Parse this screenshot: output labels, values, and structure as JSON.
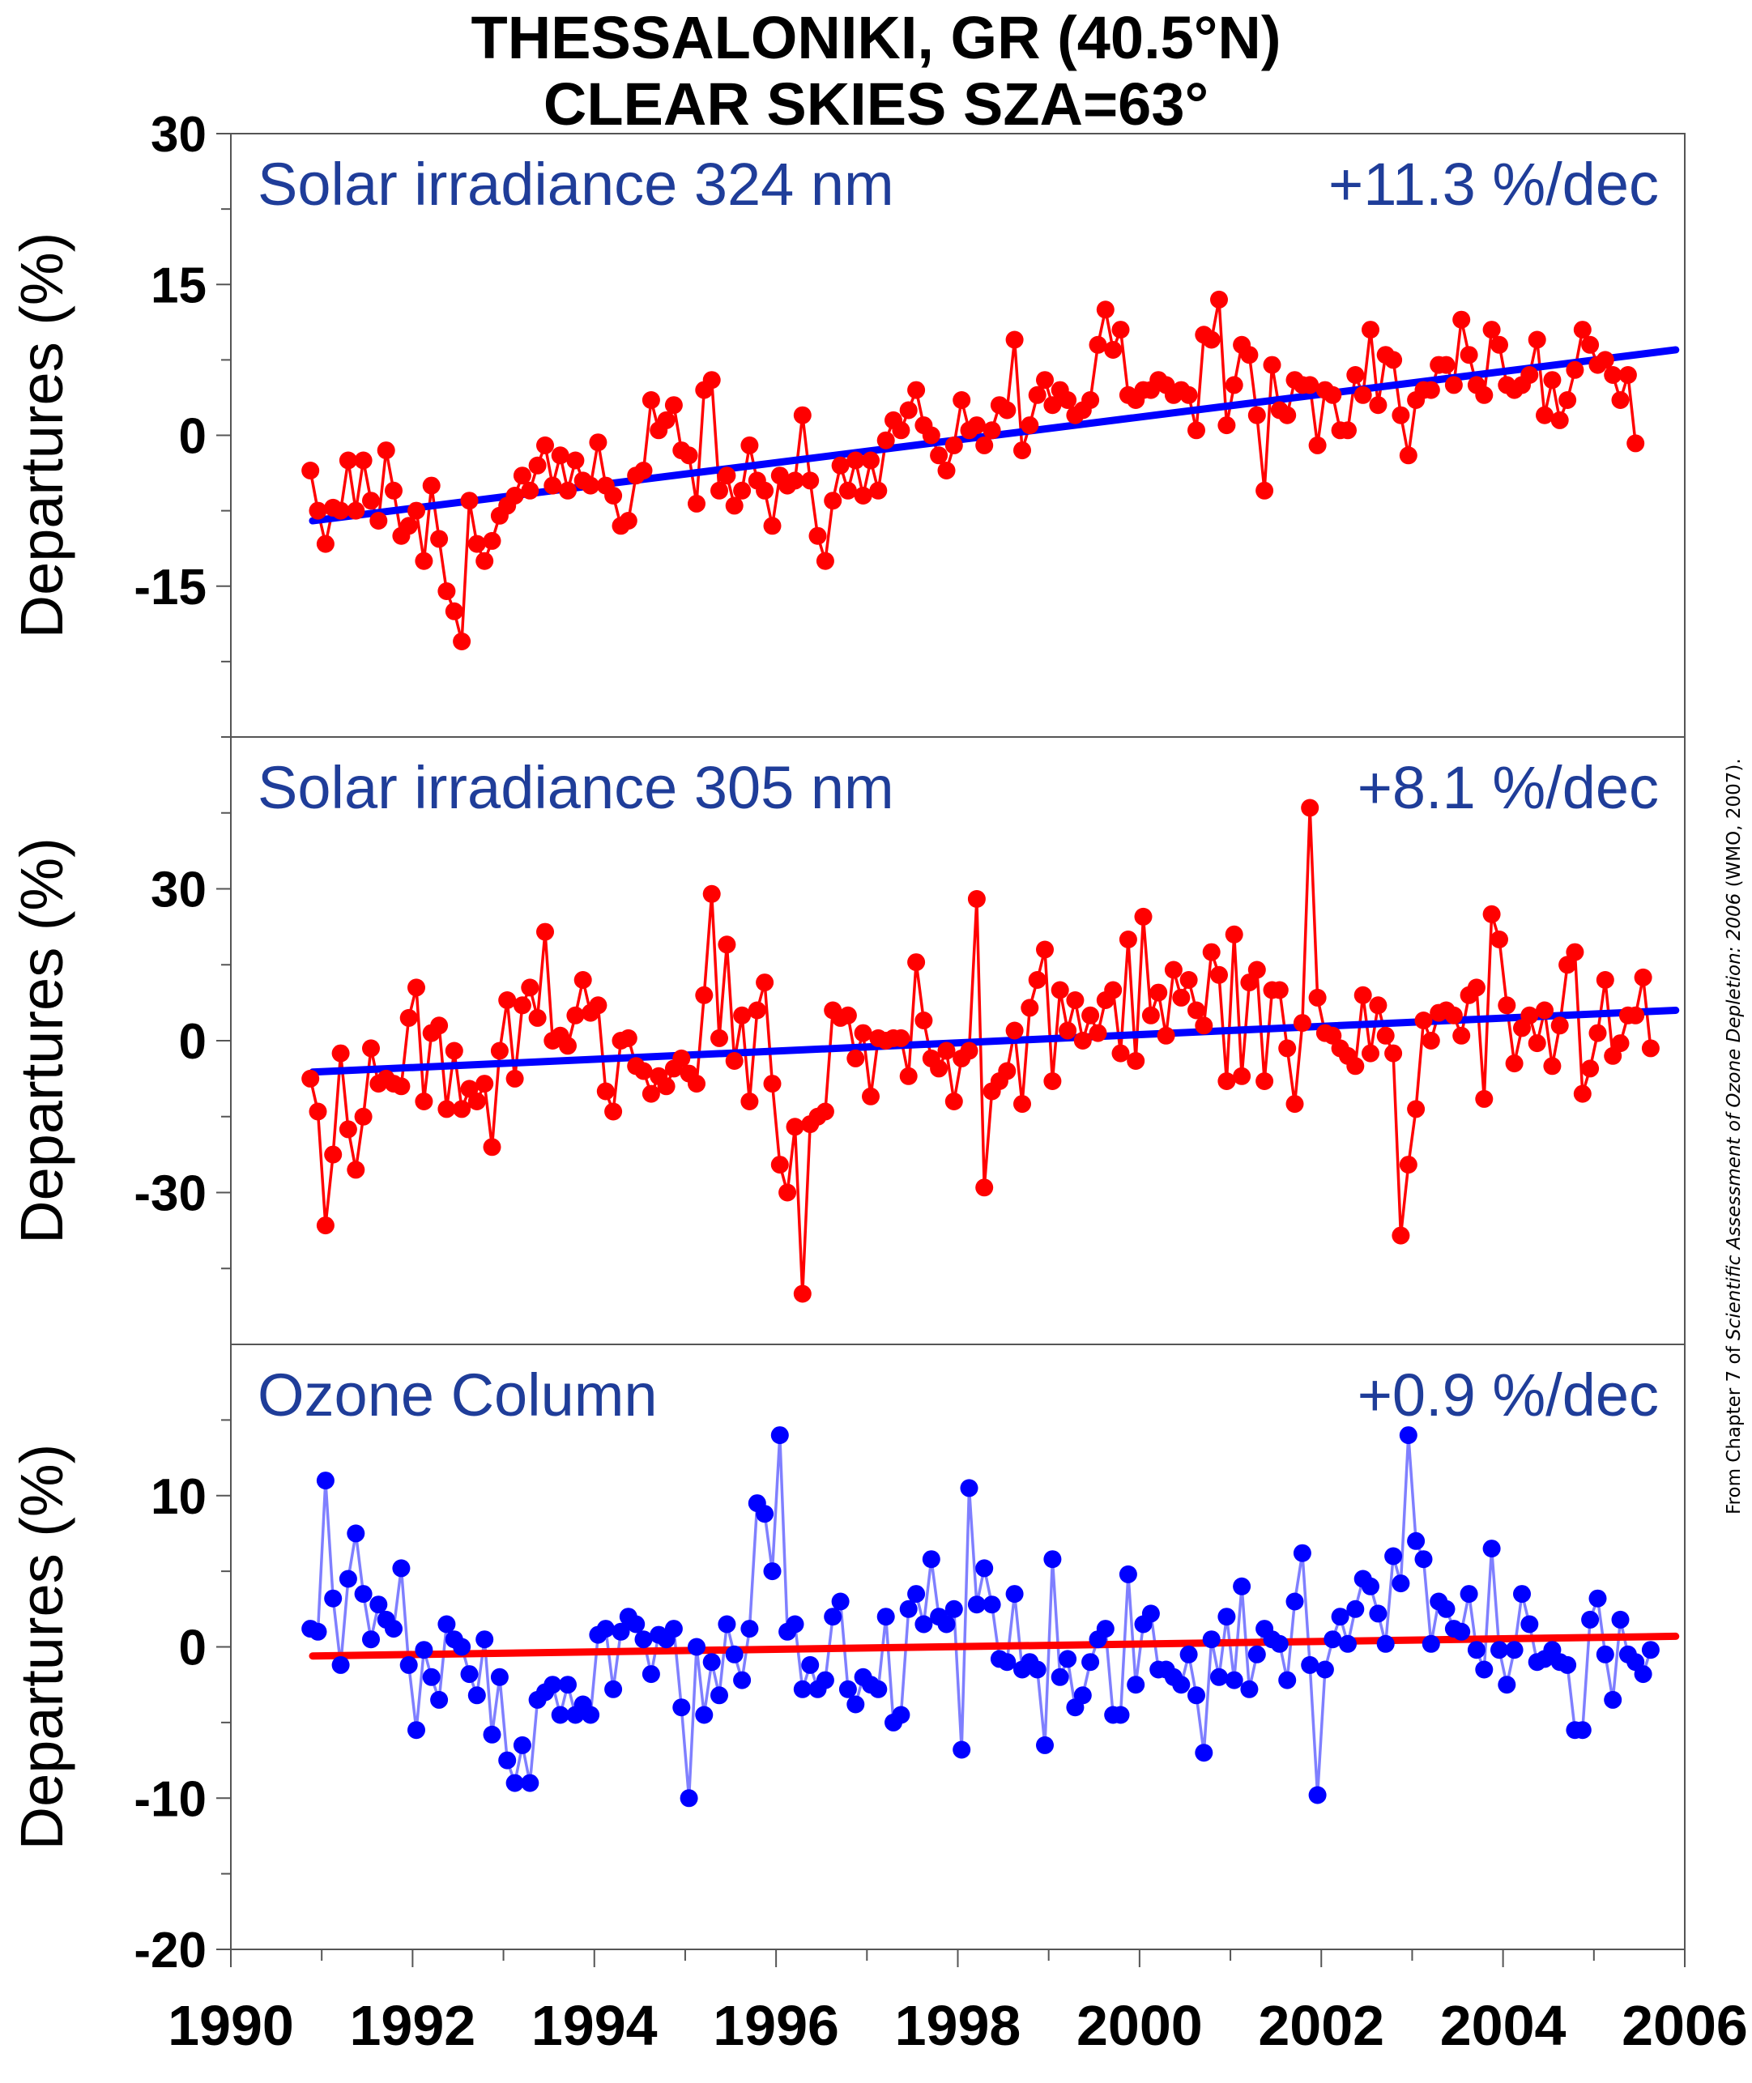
{
  "title_line1": "THESSALONIKI, GR (40.5°N)",
  "title_line2": "CLEAR SKIES  SZA=63°",
  "credit": {
    "prefix": "From Chapter 7 of ",
    "italic": "Scientific Assessment of Ozone Depletion: 2006",
    "suffix": " (WMO, 2007)."
  },
  "colors": {
    "irradiance_points": "#ff0000",
    "irradiance_trend": "#0000ff",
    "ozone_points": "#0000ff",
    "ozone_line": "#7f7fff",
    "ozone_trend": "#ff0000",
    "panel_label": "#1f3d99"
  },
  "chart_data": [
    {
      "type": "line",
      "label": "Solar irradiance 324 nm",
      "trend_label": "+11.3 %/dec",
      "ylabel": "Departures (%)",
      "xlim": [
        1990,
        2006
      ],
      "ylim": [
        -30,
        30
      ],
      "yticks_labeled": [
        -15,
        0,
        15,
        30
      ],
      "yticks_minor": [
        -30,
        -22.5,
        -7.5,
        7.5,
        22.5
      ],
      "series": [
        {
          "marker": "circle",
          "start_year": 1990.875,
          "values": [
            -3.5,
            -7.5,
            -10.8,
            -7.2,
            -7.5,
            -2.5,
            -7.5,
            -2.5,
            -6.5,
            -8.5,
            -1.5,
            -5.5,
            -10,
            -9,
            -7.5,
            -12.5,
            -5,
            -10.3,
            -15.5,
            -17.5,
            -20.5,
            -6.5,
            -10.8,
            -12.5,
            -10.5,
            -8,
            -7,
            -6,
            -4,
            -5.5,
            -3,
            -1,
            -5,
            -2,
            -5.5,
            -2.5,
            -4.5,
            -5,
            -0.7,
            -5,
            -6,
            -9,
            -8.5,
            -4,
            -3.5,
            3.5,
            0.5,
            1.5,
            3,
            -1.5,
            -2,
            -6.8,
            4.5,
            5.5,
            -5.5,
            -4,
            -7,
            -5.5,
            -1,
            -4.5,
            -5.5,
            -9,
            -4,
            -5,
            -4.5,
            2,
            -4.5,
            -10,
            -12.5,
            -6.5,
            -3,
            -5.5,
            -2.5,
            -6,
            -2.5,
            -5.5,
            -0.5,
            1.5,
            0.5,
            2.5,
            4.5,
            1,
            0,
            -2,
            -3.5,
            -1,
            3.5,
            0.5,
            1,
            -1,
            0.5,
            3,
            2.5,
            9.5,
            -1.5,
            1,
            4,
            5.5,
            3,
            4.5,
            3.5,
            2,
            2.5,
            3.5,
            9,
            12.5,
            8.5,
            10.5,
            4,
            3.5,
            4.5,
            4.5,
            5.5,
            5,
            4,
            4.5,
            4,
            0.5,
            10,
            9.5,
            13.5,
            1,
            5,
            9,
            8,
            2,
            -5.5,
            7,
            2.5,
            2,
            5.5,
            5,
            5,
            -1,
            4.5,
            4,
            0.5,
            0.5,
            6,
            4,
            10.5,
            3,
            8,
            7.5,
            2,
            -2,
            3.5,
            4.5,
            4.5,
            7,
            7,
            5,
            11.5,
            8,
            5,
            4,
            10.5,
            9,
            5,
            4.5,
            5,
            6,
            9.5,
            2,
            5.5,
            1.5,
            3.5,
            6.5,
            10.5,
            9,
            7,
            7.5,
            6,
            3.5,
            6,
            -0.8
          ]
        }
      ],
      "trend": {
        "x": [
          1990.9,
          2005.9
        ],
        "y": [
          -8.5,
          8.5
        ]
      }
    },
    {
      "type": "line",
      "label": "Solar irradiance 305 nm",
      "trend_label": "+8.1 %/dec",
      "ylabel": "Departures (%)",
      "xlim": [
        1990,
        2006
      ],
      "ylim": [
        -60,
        60
      ],
      "yticks_labeled": [
        -30,
        0,
        30
      ],
      "yticks_minor": [
        -45,
        -15,
        15,
        45
      ],
      "series": [
        {
          "marker": "circle",
          "start_year": 1990.875,
          "values": [
            -7.5,
            -14,
            -36.5,
            -22.5,
            -2.5,
            -17.5,
            -25.5,
            -15,
            -1.5,
            -8.5,
            -7.5,
            -8.5,
            -9,
            4.5,
            10.5,
            -12,
            1.5,
            3,
            -13.5,
            -2,
            -13.5,
            -9.5,
            -12,
            -8.5,
            -21,
            -2,
            8,
            -7.5,
            7,
            10.5,
            4.5,
            21.5,
            0,
            1,
            -1,
            5,
            12,
            5.5,
            7,
            -10,
            -14,
            0,
            0.5,
            -5,
            -6,
            -10.5,
            -7,
            -9,
            -5.5,
            -3.5,
            -6.5,
            -8.5,
            9,
            29,
            0.5,
            19,
            -4,
            5,
            -12,
            6,
            11.5,
            -8.5,
            -24.5,
            -30,
            -17,
            -50,
            -16.5,
            -15,
            -14,
            6,
            4.5,
            5,
            -3.5,
            1.5,
            -11,
            0.5,
            0,
            0.5,
            0.5,
            -7,
            15.5,
            4,
            -3.5,
            -5.5,
            -2,
            -12,
            -3.5,
            -2,
            28,
            -29,
            -10,
            -8,
            -6,
            2,
            -12.5,
            6.5,
            12,
            18,
            -8,
            10,
            2,
            8,
            0,
            5,
            1.5,
            8,
            10,
            -2.5,
            20,
            -4,
            24.5,
            5,
            9.5,
            1,
            14,
            8.5,
            12,
            6,
            3,
            17.5,
            13,
            -8,
            21,
            -7,
            11.5,
            14,
            -8,
            10,
            10,
            -1.5,
            -12.5,
            3.5,
            46,
            8.5,
            1.5,
            1,
            -1.5,
            -3,
            -5,
            9,
            -2.5,
            7,
            1,
            -2.5,
            -38.5,
            -24.5,
            -13.5,
            4,
            0,
            5.5,
            6,
            5,
            1,
            9,
            10.5,
            -11.5,
            25,
            20,
            7,
            -4.5,
            2.5,
            5,
            -0.5,
            6,
            -5,
            3,
            15,
            17.5,
            -10.5,
            -5.5,
            1.5,
            12,
            -3,
            -0.5,
            5,
            5,
            12.5,
            -1.5
          ]
        }
      ],
      "trend": {
        "x": [
          1990.9,
          2005.9
        ],
        "y": [
          -6.2,
          6.0
        ]
      }
    },
    {
      "type": "line",
      "label": "Ozone Column",
      "trend_label": "+0.9 %/dec",
      "ylabel": "Departures (%)",
      "xlabel": "",
      "xlim": [
        1990,
        2006
      ],
      "ylim": [
        -20,
        20
      ],
      "xticks": [
        1990,
        1992,
        1994,
        1996,
        1998,
        2000,
        2002,
        2004,
        2006
      ],
      "xticks_minor": [
        1991,
        1993,
        1995,
        1997,
        1999,
        2001,
        2003,
        2005
      ],
      "yticks_labeled": [
        -20,
        -10,
        0,
        10
      ],
      "yticks_minor": [
        -15,
        -5,
        5,
        15
      ],
      "series": [
        {
          "marker": "circle",
          "start_year": 1990.875,
          "values": [
            1.2,
            1.0,
            11,
            3.2,
            -1.2,
            4.5,
            7.5,
            3.5,
            0.5,
            2.8,
            1.8,
            1.2,
            5.2,
            -1.2,
            -5.5,
            -0.2,
            -2,
            -3.5,
            1.5,
            0.5,
            0,
            -1.8,
            -3.2,
            0.5,
            -5.8,
            -2,
            -7.5,
            -9,
            -6.5,
            -9,
            -3.5,
            -3,
            -2.5,
            -4.5,
            -2.5,
            -4.5,
            -3.8,
            -4.5,
            0.8,
            1.2,
            -2.8,
            1,
            2,
            1.5,
            0.5,
            -1.8,
            0.8,
            0.5,
            1.2,
            -4,
            -10,
            0,
            -4.5,
            -1,
            -3.2,
            1.5,
            -0.5,
            -2.2,
            1.2,
            9.5,
            8.8,
            5,
            14,
            1,
            1.5,
            -2.8,
            -1.2,
            -2.8,
            -2.2,
            2,
            3,
            -2.8,
            -3.8,
            -2,
            -2.5,
            -2.8,
            2,
            -5,
            -4.5,
            2.5,
            3.5,
            1.5,
            5.8,
            2,
            1.5,
            2.5,
            -6.8,
            10.5,
            2.8,
            5.2,
            2.8,
            -0.8,
            -1,
            3.5,
            -1.5,
            -1,
            -1.5,
            -6.5,
            5.8,
            -2,
            -0.8,
            -4,
            -3.2,
            -1,
            0.5,
            1.2,
            -4.5,
            -4.5,
            4.8,
            -2.5,
            1.5,
            2.2,
            -1.5,
            -1.5,
            -2,
            -2.5,
            -0.5,
            -3.2,
            -7,
            0.5,
            -2,
            2,
            -2.2,
            4,
            -2.8,
            -0.5,
            1.2,
            0.5,
            0.2,
            -2.2,
            3,
            6.2,
            -1.2,
            -9.8,
            -1.5,
            0.5,
            2,
            0.2,
            2.5,
            4.5,
            4,
            2.2,
            0.2,
            6,
            4.2,
            14,
            7,
            5.8,
            0.2,
            3,
            2.5,
            1.2,
            1,
            3.5,
            -0.2,
            -1.5,
            6.5,
            -0.2,
            -2.5,
            -0.2,
            3.5,
            1.5,
            -1,
            -0.8,
            -0.2,
            -1,
            -1.2,
            -5.5,
            -5.5,
            1.8,
            3.2,
            -0.5,
            -3.5,
            1.8,
            -0.5,
            -1,
            -1.8,
            -0.2
          ]
        }
      ],
      "trend": {
        "x": [
          1990.9,
          2005.9
        ],
        "y": [
          -0.6,
          0.7
        ]
      }
    }
  ]
}
